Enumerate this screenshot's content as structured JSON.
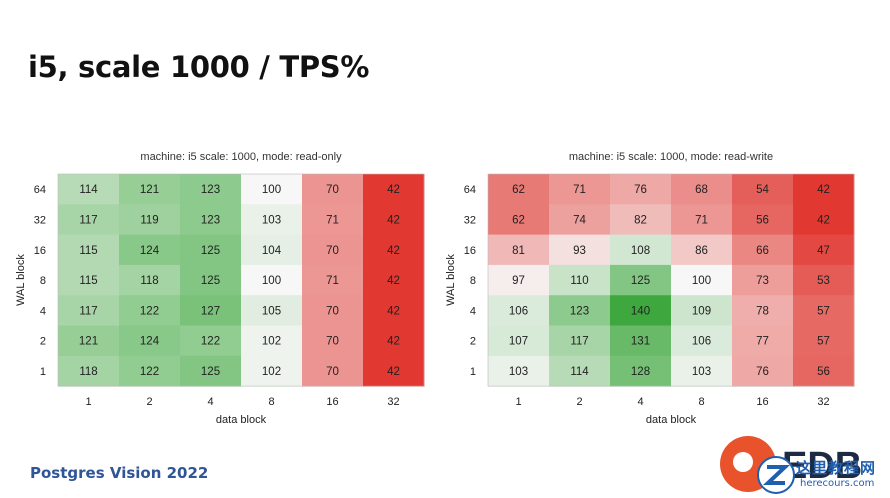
{
  "slide": {
    "title": "i5, scale 1000 / TPS%",
    "footer": "Postgres Vision 2022"
  },
  "brand": {
    "logo_text": "EDB",
    "watermark_text": "这里教程网",
    "watermark_sub": "herecours.com",
    "accent": "#e8532c",
    "watermark_color": "#1f5fb0"
  },
  "chart_data": [
    {
      "type": "heatmap",
      "title": "machine: i5 scale: 1000, mode: read-only",
      "xlabel": "data block",
      "ylabel": "WAL block",
      "x": [
        "1",
        "2",
        "4",
        "8",
        "16",
        "32"
      ],
      "y": [
        "64",
        "32",
        "16",
        "8",
        "4",
        "2",
        "1"
      ],
      "values": [
        [
          114,
          121,
          123,
          100,
          70,
          42
        ],
        [
          117,
          119,
          123,
          103,
          71,
          42
        ],
        [
          115,
          124,
          125,
          104,
          70,
          42
        ],
        [
          115,
          118,
          125,
          100,
          71,
          42
        ],
        [
          117,
          122,
          127,
          105,
          70,
          42
        ],
        [
          121,
          124,
          122,
          102,
          70,
          42
        ],
        [
          118,
          122,
          125,
          102,
          70,
          42
        ]
      ],
      "color_scale": {
        "low": "#e0312a",
        "mid": "#f7f7f7",
        "high": "#3ea83e",
        "mid_value": 100,
        "min": 40,
        "max": 140
      }
    },
    {
      "type": "heatmap",
      "title": "machine: i5 scale: 1000, mode: read-write",
      "xlabel": "data block",
      "ylabel": "WAL block",
      "x": [
        "1",
        "2",
        "4",
        "8",
        "16",
        "32"
      ],
      "y": [
        "64",
        "32",
        "16",
        "8",
        "4",
        "2",
        "1"
      ],
      "values": [
        [
          62,
          71,
          76,
          68,
          54,
          42
        ],
        [
          62,
          74,
          82,
          71,
          56,
          42
        ],
        [
          81,
          93,
          108,
          86,
          66,
          47
        ],
        [
          97,
          110,
          125,
          100,
          73,
          53
        ],
        [
          106,
          123,
          140,
          109,
          78,
          57
        ],
        [
          107,
          117,
          131,
          106,
          77,
          57
        ],
        [
          103,
          114,
          128,
          103,
          76,
          56
        ]
      ],
      "color_scale": {
        "low": "#e0312a",
        "mid": "#f7f7f7",
        "high": "#3ea83e",
        "mid_value": 100,
        "min": 40,
        "max": 140
      }
    }
  ]
}
